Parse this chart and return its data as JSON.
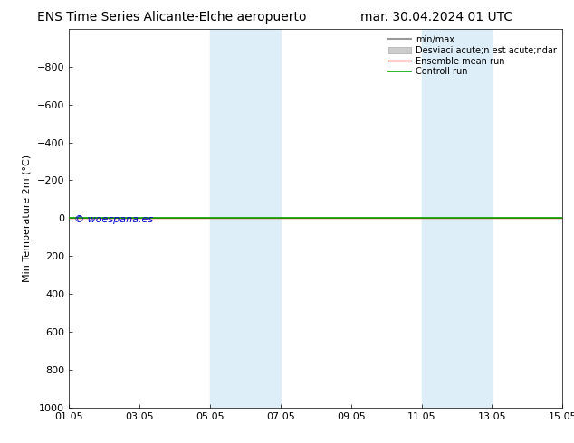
{
  "title_left": "ENS Time Series Alicante-Elche aeropuerto",
  "title_right": "mar. 30.04.2024 01 UTC",
  "ylabel": "Min Temperature 2m (°C)",
  "ylim": [
    -1000,
    1000
  ],
  "ylim_top": -1000,
  "ylim_bottom": 1000,
  "yticks": [
    -800,
    -600,
    -400,
    -200,
    0,
    200,
    400,
    600,
    800,
    1000
  ],
  "xtick_labels": [
    "01.05",
    "03.05",
    "05.05",
    "07.05",
    "09.05",
    "11.05",
    "13.05",
    "15.05"
  ],
  "xtick_positions": [
    0,
    2,
    4,
    6,
    8,
    10,
    12,
    14
  ],
  "shaded_bands": [
    {
      "start": 4,
      "end": 6
    },
    {
      "start": 10,
      "end": 12
    }
  ],
  "shaded_color": "#ddeef8",
  "shaded_alpha": 1.0,
  "control_run_y": 0.0,
  "control_run_color": "#00aa00",
  "ensemble_mean_color": "#ff0000",
  "ensemble_mean_y": 0.0,
  "minmax_color": "#999999",
  "std_color": "#cccccc",
  "watermark": "© woespana.es",
  "watermark_color": "#0000cc",
  "legend_labels": [
    "min/max",
    "Desviaci acute;n est acute;ndar",
    "Ensemble mean run",
    "Controll run"
  ],
  "legend_colors": [
    "#999999",
    "#cccccc",
    "#ff0000",
    "#00aa00"
  ],
  "background_color": "#ffffff",
  "title_fontsize": 10,
  "axis_fontsize": 8,
  "tick_fontsize": 8
}
